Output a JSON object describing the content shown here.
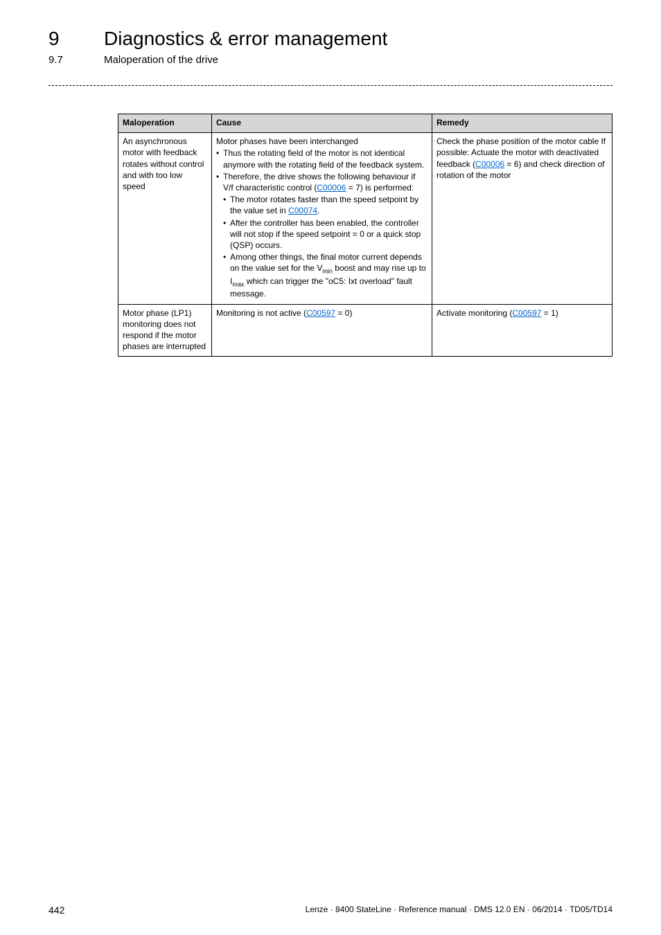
{
  "header": {
    "chapter_num": "9",
    "chapter_title": "Diagnostics & error management",
    "sub_num": "9.7",
    "sub_title": "Maloperation of the drive"
  },
  "table": {
    "headers": {
      "maloperation": "Maloperation",
      "cause": "Cause",
      "remedy": "Remedy"
    },
    "rows": [
      {
        "maloperation": "An asynchronous motor with feedback rotates without control and with too low speed",
        "cause_intro": "Motor phases have been interchanged",
        "cause_b1": "Thus the rotating field of the motor is not identical anymore with the rotating field of the feedback system.",
        "cause_b2_pre": "Therefore, the drive shows the following behaviour if V/f characteristic control (",
        "cause_b2_link": "C00006",
        "cause_b2_post": " = 7) is performed:",
        "cause_s1_pre": "The motor rotates faster than the speed setpoint by the value set in ",
        "cause_s1_link": "C00074",
        "cause_s1_post": ".",
        "cause_s2": "After the controller has been enabled, the controller will not stop if the speed setpoint = 0 or a quick stop (QSP) occurs.",
        "cause_s3_pre": "Among other things, the final motor current depends on the value set for the V",
        "cause_s3_min": "min",
        "cause_s3_mid": " boost and may rise up to I",
        "cause_s3_max": "max",
        "cause_s3_post": " which can trigger the \"oC5: Ixt overload\" fault message.",
        "remedy_pre": "Check the phase position of the motor cable If possible: Actuate the motor with deactivated feedback (",
        "remedy_link": "C00006",
        "remedy_post": " = 6) and check direction of rotation of the motor"
      },
      {
        "maloperation": "Motor phase (LP1) monitoring does not respond if the motor phases are interrupted",
        "cause_pre": "Monitoring is not active (",
        "cause_link": "C00597",
        "cause_post": " = 0)",
        "remedy_pre": "Activate monitoring (",
        "remedy_link": "C00597",
        "remedy_post": " = 1)"
      }
    ]
  },
  "footer": {
    "page_num": "442",
    "doc_info": "Lenze · 8400 StateLine · Reference manual · DMS 12.0 EN · 06/2014 · TD05/TD14"
  }
}
